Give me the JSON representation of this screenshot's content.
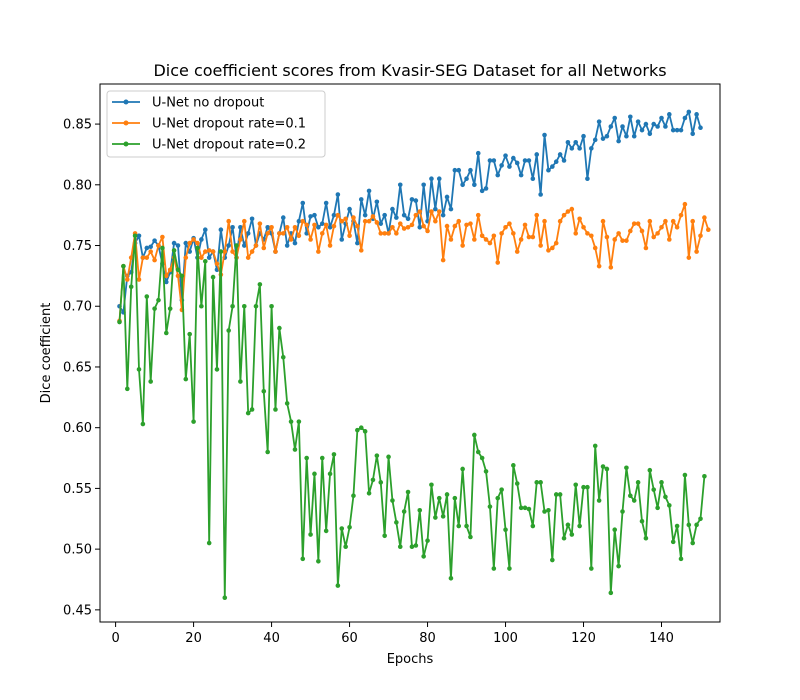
{
  "chart_data": {
    "type": "line",
    "title": "Dice coefficient scores from Kvasir-SEG Dataset for all Networks",
    "xlabel": "Epochs",
    "ylabel": "Dice coefficient",
    "xlim": [
      -4,
      155
    ],
    "ylim": [
      0.44,
      0.883
    ],
    "xticks": [
      0,
      20,
      40,
      60,
      80,
      100,
      120,
      140
    ],
    "yticks": [
      0.45,
      0.5,
      0.55,
      0.6,
      0.65,
      0.7,
      0.75,
      0.8,
      0.85
    ],
    "ytick_labels": [
      "0.45",
      "0.50",
      "0.55",
      "0.60",
      "0.65",
      "0.70",
      "0.75",
      "0.80",
      "0.85"
    ],
    "grid": false,
    "legend_position": "top-left",
    "series": [
      {
        "name": "U-Net no dropout",
        "color": "#1f77b4",
        "values": [
          0.7,
          0.695,
          0.725,
          0.728,
          0.752,
          0.758,
          0.74,
          0.748,
          0.749,
          0.754,
          0.75,
          0.735,
          0.72,
          0.728,
          0.752,
          0.75,
          0.705,
          0.752,
          0.745,
          0.756,
          0.74,
          0.755,
          0.763,
          0.74,
          0.745,
          0.73,
          0.763,
          0.74,
          0.75,
          0.765,
          0.74,
          0.765,
          0.75,
          0.76,
          0.772,
          0.75,
          0.76,
          0.755,
          0.765,
          0.76,
          0.745,
          0.76,
          0.773,
          0.75,
          0.76,
          0.752,
          0.77,
          0.785,
          0.76,
          0.774,
          0.775,
          0.765,
          0.768,
          0.785,
          0.765,
          0.775,
          0.792,
          0.755,
          0.768,
          0.78,
          0.77,
          0.752,
          0.788,
          0.775,
          0.795,
          0.772,
          0.786,
          0.768,
          0.775,
          0.76,
          0.78,
          0.773,
          0.8,
          0.775,
          0.772,
          0.788,
          0.787,
          0.765,
          0.8,
          0.77,
          0.805,
          0.78,
          0.805,
          0.775,
          0.79,
          0.78,
          0.812,
          0.812,
          0.8,
          0.805,
          0.812,
          0.8,
          0.826,
          0.795,
          0.797,
          0.82,
          0.82,
          0.808,
          0.816,
          0.824,
          0.815,
          0.822,
          0.818,
          0.808,
          0.82,
          0.82,
          0.805,
          0.825,
          0.792,
          0.841,
          0.812,
          0.815,
          0.819,
          0.825,
          0.82,
          0.835,
          0.83,
          0.835,
          0.83,
          0.84,
          0.805,
          0.83,
          0.837,
          0.852,
          0.838,
          0.84,
          0.848,
          0.855,
          0.836,
          0.848,
          0.84,
          0.856,
          0.84,
          0.852,
          0.845,
          0.85,
          0.842,
          0.85,
          0.848,
          0.855,
          0.848,
          0.858,
          0.845,
          0.845,
          0.845,
          0.855,
          0.86,
          0.842,
          0.858,
          0.847
        ]
      },
      {
        "name": "U-Net dropout rate=0.1",
        "color": "#ff7f0e",
        "values": [
          0.688,
          0.733,
          0.722,
          0.74,
          0.76,
          0.722,
          0.74,
          0.74,
          0.745,
          0.738,
          0.75,
          0.757,
          0.725,
          0.73,
          0.74,
          0.725,
          0.697,
          0.74,
          0.752,
          0.755,
          0.752,
          0.74,
          0.745,
          0.746,
          0.745,
          0.735,
          0.726,
          0.745,
          0.77,
          0.745,
          0.74,
          0.755,
          0.77,
          0.74,
          0.745,
          0.75,
          0.768,
          0.748,
          0.76,
          0.765,
          0.745,
          0.76,
          0.76,
          0.765,
          0.755,
          0.765,
          0.758,
          0.77,
          0.767,
          0.755,
          0.767,
          0.745,
          0.76,
          0.767,
          0.75,
          0.766,
          0.775,
          0.77,
          0.772,
          0.758,
          0.773,
          0.766,
          0.746,
          0.77,
          0.77,
          0.774,
          0.769,
          0.76,
          0.76,
          0.76,
          0.765,
          0.76,
          0.768,
          0.764,
          0.765,
          0.767,
          0.775,
          0.778,
          0.766,
          0.762,
          0.778,
          0.77,
          0.778,
          0.738,
          0.766,
          0.755,
          0.766,
          0.77,
          0.75,
          0.767,
          0.768,
          0.755,
          0.775,
          0.758,
          0.755,
          0.752,
          0.758,
          0.736,
          0.76,
          0.765,
          0.768,
          0.76,
          0.745,
          0.755,
          0.767,
          0.757,
          0.757,
          0.775,
          0.75,
          0.77,
          0.746,
          0.748,
          0.752,
          0.77,
          0.775,
          0.778,
          0.78,
          0.76,
          0.772,
          0.765,
          0.76,
          0.758,
          0.748,
          0.733,
          0.77,
          0.757,
          0.732,
          0.755,
          0.76,
          0.754,
          0.754,
          0.762,
          0.768,
          0.768,
          0.762,
          0.748,
          0.77,
          0.757,
          0.76,
          0.765,
          0.77,
          0.755,
          0.77,
          0.765,
          0.775,
          0.784,
          0.74,
          0.77,
          0.745,
          0.758,
          0.773,
          0.763
        ]
      },
      {
        "name": "U-Net dropout rate=0.2",
        "color": "#2ca02c",
        "values": [
          0.687,
          0.733,
          0.632,
          0.716,
          0.758,
          0.648,
          0.603,
          0.708,
          0.638,
          0.698,
          0.705,
          0.748,
          0.678,
          0.698,
          0.746,
          0.73,
          0.725,
          0.64,
          0.677,
          0.605,
          0.748,
          0.7,
          0.737,
          0.505,
          0.724,
          0.648,
          0.745,
          0.46,
          0.68,
          0.7,
          0.75,
          0.638,
          0.7,
          0.612,
          0.615,
          0.7,
          0.718,
          0.63,
          0.58,
          0.7,
          0.615,
          0.682,
          0.658,
          0.62,
          0.605,
          0.582,
          0.605,
          0.492,
          0.575,
          0.512,
          0.562,
          0.49,
          0.575,
          0.515,
          0.562,
          0.578,
          0.47,
          0.517,
          0.502,
          0.518,
          0.544,
          0.598,
          0.6,
          0.597,
          0.546,
          0.557,
          0.577,
          0.555,
          0.511,
          0.576,
          0.54,
          0.522,
          0.502,
          0.531,
          0.547,
          0.502,
          0.503,
          0.532,
          0.494,
          0.507,
          0.553,
          0.526,
          0.542,
          0.527,
          0.545,
          0.476,
          0.542,
          0.519,
          0.566,
          0.519,
          0.51,
          0.594,
          0.58,
          0.575,
          0.564,
          0.535,
          0.484,
          0.542,
          0.549,
          0.516,
          0.484,
          0.569,
          0.554,
          0.534,
          0.534,
          0.533,
          0.519,
          0.555,
          0.555,
          0.531,
          0.532,
          0.491,
          0.545,
          0.545,
          0.509,
          0.52,
          0.512,
          0.553,
          0.519,
          0.551,
          0.551,
          0.484,
          0.585,
          0.54,
          0.568,
          0.566,
          0.464,
          0.516,
          0.486,
          0.531,
          0.567,
          0.544,
          0.54,
          0.555,
          0.523,
          0.509,
          0.565,
          0.549,
          0.534,
          0.555,
          0.543,
          0.536,
          0.506,
          0.519,
          0.492,
          0.561,
          0.52,
          0.505,
          0.52,
          0.525,
          0.56
        ]
      }
    ]
  }
}
